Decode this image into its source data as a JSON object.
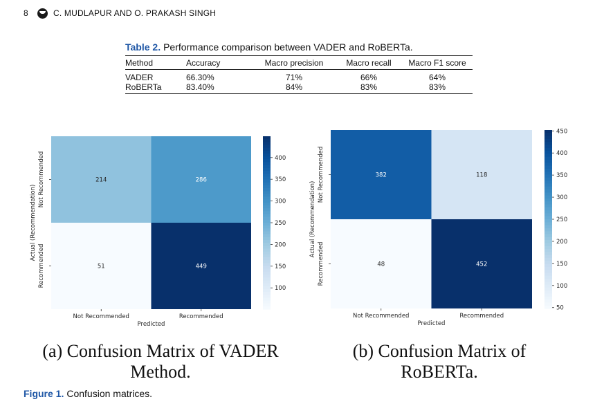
{
  "header": {
    "page_number": "8",
    "authors": "C. MUDLAPUR AND O. PRAKASH SINGH"
  },
  "table": {
    "label": "Table 2.",
    "title": "Performance comparison between VADER and RoBERTa.",
    "columns": [
      "Method",
      "Accuracy",
      "Macro precision",
      "Macro recall",
      "Macro F1 score"
    ],
    "rows": [
      [
        "VADER",
        "66.30%",
        "71%",
        "66%",
        "64%"
      ],
      [
        "RoBERTa",
        "83.40%",
        "84%",
        "83%",
        "83%"
      ]
    ]
  },
  "chart_data": [
    {
      "type": "heatmap",
      "xlabel": "Predicted",
      "ylabel": "Actual (Recommendation)",
      "x_categories": [
        "Not Recommended",
        "Recommended"
      ],
      "y_categories": [
        "Not Recommended",
        "Recommended"
      ],
      "values": [
        [
          214,
          286
        ],
        [
          51,
          449
        ]
      ],
      "colorbar": {
        "min": 51,
        "max": 449,
        "ticks": [
          100,
          150,
          200,
          250,
          300,
          350,
          400
        ]
      },
      "colormap": "Blues"
    },
    {
      "type": "heatmap",
      "xlabel": "Predicted",
      "ylabel": "Actual (Recommendation)",
      "x_categories": [
        "Not Recommended",
        "Recommended"
      ],
      "y_categories": [
        "Not Recommended",
        "Recommended"
      ],
      "values": [
        [
          382,
          118
        ],
        [
          48,
          452
        ]
      ],
      "colorbar": {
        "min": 48,
        "max": 452,
        "ticks": [
          50,
          100,
          150,
          200,
          250,
          300,
          350,
          400,
          450
        ]
      },
      "colormap": "Blues"
    }
  ],
  "subcaptions": [
    {
      "line1": "(a) Confusion Matrix of VADER",
      "line2": "Method."
    },
    {
      "line1": "(b) Confusion Matrix of",
      "line2": "RoBERTa."
    }
  ],
  "figure": {
    "label": "Figure 1.",
    "title": "Confusion matrices."
  },
  "colors": {
    "accent": "#1f57a6"
  }
}
